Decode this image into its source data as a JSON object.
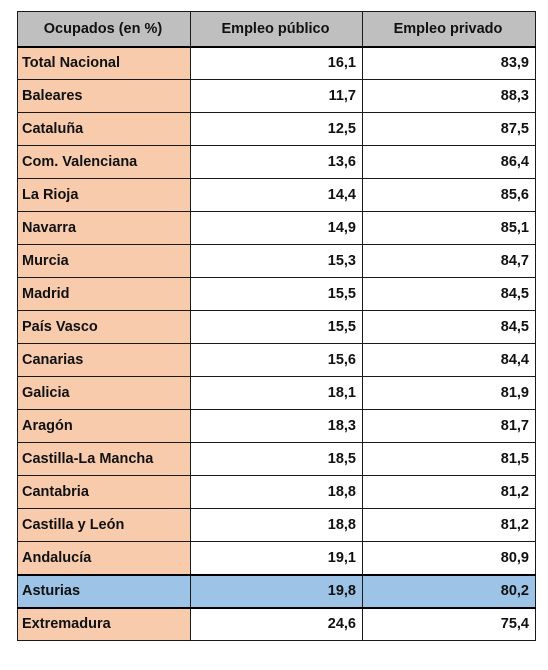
{
  "table": {
    "headers": [
      "Ocupados (en %)",
      "Empleo público",
      "Empleo privado"
    ],
    "rows": [
      {
        "region": "Total Nacional",
        "publico": "16,1",
        "privado": "83,9"
      },
      {
        "region": "Baleares",
        "publico": "11,7",
        "privado": "88,3"
      },
      {
        "region": "Cataluña",
        "publico": "12,5",
        "privado": "87,5"
      },
      {
        "region": "Com. Valenciana",
        "publico": "13,6",
        "privado": "86,4"
      },
      {
        "region": "La Rioja",
        "publico": "14,4",
        "privado": "85,6"
      },
      {
        "region": "Navarra",
        "publico": "14,9",
        "privado": "85,1"
      },
      {
        "region": "Murcia",
        "publico": "15,3",
        "privado": "84,7"
      },
      {
        "region": "Madrid",
        "publico": "15,5",
        "privado": "84,5"
      },
      {
        "region": "País Vasco",
        "publico": "15,5",
        "privado": "84,5"
      },
      {
        "region": "Canarias",
        "publico": "15,6",
        "privado": "84,4"
      },
      {
        "region": "Galicia",
        "publico": "18,1",
        "privado": "81,9"
      },
      {
        "region": "Aragón",
        "publico": "18,3",
        "privado": "81,7"
      },
      {
        "region": "Castilla-La Mancha",
        "publico": "18,5",
        "privado": "81,5"
      },
      {
        "region": "Cantabria",
        "publico": "18,8",
        "privado": "81,2"
      },
      {
        "region": "Castilla y León",
        "publico": "18,8",
        "privado": "81,2"
      },
      {
        "region": "Andalucía",
        "publico": "19,1",
        "privado": "80,9"
      },
      {
        "region": "Asturias",
        "publico": "19,8",
        "privado": "80,2",
        "highlight": true
      },
      {
        "region": "Extremadura",
        "publico": "24,6",
        "privado": "75,4"
      }
    ]
  },
  "colors": {
    "header_bg": "#bfbfbf",
    "region_bg": "#f8cbad",
    "highlight_bg": "#9dc3e6"
  }
}
